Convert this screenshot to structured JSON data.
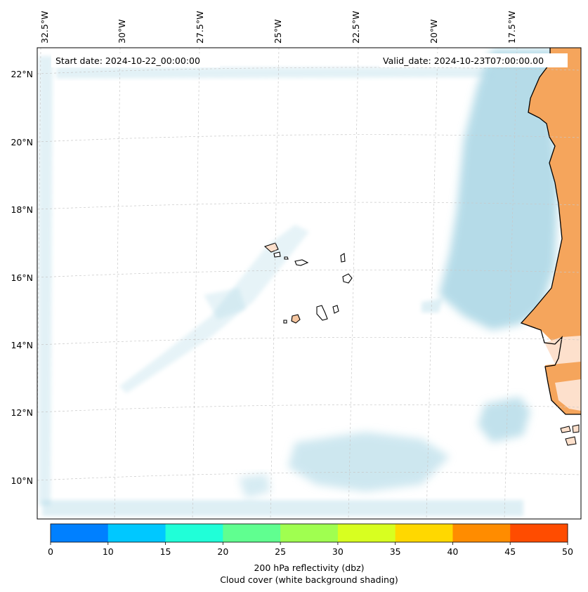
{
  "annotations": {
    "start_date": "Start date: 2024-10-22_00:00:00",
    "valid_date": "Valid_date: 2024-10-23T07:00:00.00"
  },
  "lon_labels": [
    "32.5°W",
    "30°W",
    "27.5°W",
    "25°W",
    "22.5°W",
    "20°W",
    "17.5°W"
  ],
  "lat_labels": [
    "22°N",
    "20°N",
    "18°N",
    "16°N",
    "14°N",
    "12°N",
    "10°N"
  ],
  "colorbar": {
    "ticks": [
      "0",
      "10",
      "15",
      "20",
      "25",
      "30",
      "35",
      "40",
      "45",
      "50"
    ],
    "colors": [
      "#0080ff",
      "#00c8ff",
      "#20ffd8",
      "#60ff90",
      "#a0ff50",
      "#d8ff20",
      "#ffd800",
      "#ff8c00",
      "#ff4c00"
    ],
    "label_line1": "200 hPa reflectivity (dbz)",
    "label_line2": "Cloud cover (white background shading)"
  },
  "map_colors": {
    "land": "#f5a55c",
    "land_light": "#fde0cc",
    "cloud": "#add8e6",
    "coast": "#000000",
    "gridline": "#c8c8c8"
  }
}
